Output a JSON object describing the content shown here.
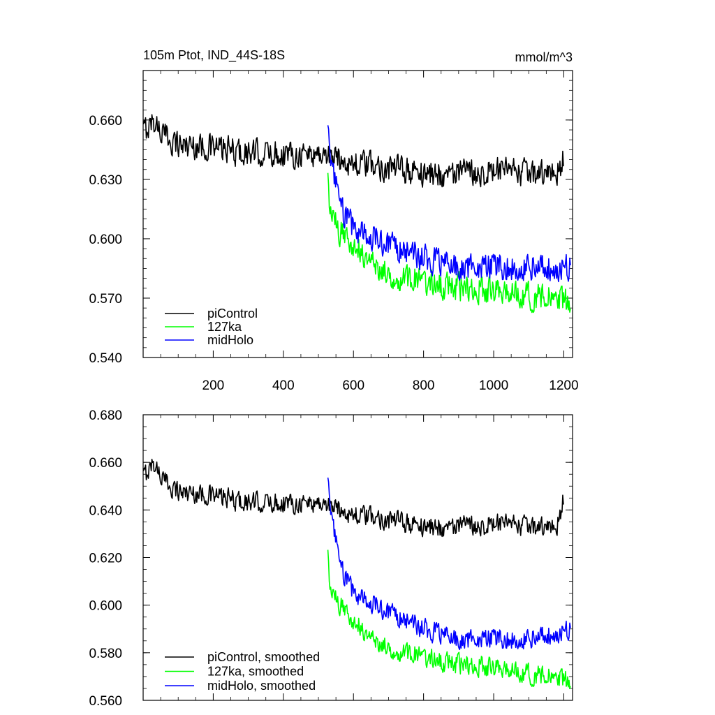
{
  "chart_data": [
    {
      "type": "line",
      "title": "105m Ptot, IND_44S-18S",
      "units": "mmol/m^3",
      "xlim": [
        0,
        1225
      ],
      "ylim": [
        0.54,
        0.685
      ],
      "x_ticks": [
        200,
        400,
        600,
        800,
        1000,
        1200
      ],
      "x_tick_labels": [
        "200",
        "400",
        "600",
        "800",
        "1000",
        "1200"
      ],
      "y_ticks": [
        0.54,
        0.57,
        0.6,
        0.63,
        0.66
      ],
      "y_tick_labels": [
        "0.540",
        "0.570",
        "0.600",
        "0.630",
        "0.660"
      ],
      "legend_position": "bottom-left",
      "series": [
        {
          "name": "piControl",
          "color": "#000000",
          "x_start": 1,
          "x_end": 1200,
          "noise": 0.0065,
          "anchors": [
            [
              1,
              0.654
            ],
            [
              30,
              0.66
            ],
            [
              60,
              0.652
            ],
            [
              100,
              0.648
            ],
            [
              200,
              0.646
            ],
            [
              300,
              0.643
            ],
            [
              400,
              0.643
            ],
            [
              500,
              0.643
            ],
            [
              530,
              0.642
            ],
            [
              600,
              0.638
            ],
            [
              700,
              0.636
            ],
            [
              800,
              0.633
            ],
            [
              900,
              0.633
            ],
            [
              1000,
              0.634
            ],
            [
              1100,
              0.633
            ],
            [
              1180,
              0.632
            ],
            [
              1200,
              0.642
            ]
          ]
        },
        {
          "name": "127ka",
          "color": "#00ff00",
          "x_start": 527,
          "x_end": 1220,
          "noise": 0.0065,
          "anchors": [
            [
              527,
              0.628
            ],
            [
              535,
              0.612
            ],
            [
              560,
              0.603
            ],
            [
              600,
              0.598
            ],
            [
              650,
              0.588
            ],
            [
              700,
              0.582
            ],
            [
              800,
              0.578
            ],
            [
              900,
              0.575
            ],
            [
              1000,
              0.574
            ],
            [
              1100,
              0.571
            ],
            [
              1220,
              0.568
            ]
          ]
        },
        {
          "name": "midHolo",
          "color": "#0000ff",
          "x_start": 527,
          "x_end": 1220,
          "noise": 0.0065,
          "anchors": [
            [
              527,
              0.658
            ],
            [
              535,
              0.64
            ],
            [
              560,
              0.617
            ],
            [
              600,
              0.605
            ],
            [
              650,
              0.601
            ],
            [
              700,
              0.597
            ],
            [
              800,
              0.59
            ],
            [
              900,
              0.585
            ],
            [
              1000,
              0.586
            ],
            [
              1100,
              0.586
            ],
            [
              1220,
              0.586
            ]
          ]
        }
      ]
    },
    {
      "type": "line",
      "xlim": [
        0,
        1225
      ],
      "ylim": [
        0.56,
        0.68
      ],
      "x_ticks": [
        200,
        400,
        600,
        800,
        1000,
        1200
      ],
      "x_tick_labels": [],
      "y_ticks": [
        0.56,
        0.58,
        0.6,
        0.62,
        0.64,
        0.66,
        0.68
      ],
      "y_tick_labels": [
        "0.560",
        "0.580",
        "0.600",
        "0.620",
        "0.640",
        "0.660",
        "0.680"
      ],
      "legend_position": "bottom-left",
      "series": [
        {
          "name": "piControl, smoothed",
          "color": "#000000",
          "x_start": 1,
          "x_end": 1200,
          "noise": 0.004,
          "anchors": [
            [
              1,
              0.654
            ],
            [
              30,
              0.66
            ],
            [
              60,
              0.652
            ],
            [
              100,
              0.648
            ],
            [
              200,
              0.646
            ],
            [
              300,
              0.643
            ],
            [
              400,
              0.643
            ],
            [
              500,
              0.643
            ],
            [
              530,
              0.642
            ],
            [
              600,
              0.638
            ],
            [
              700,
              0.636
            ],
            [
              800,
              0.633
            ],
            [
              900,
              0.633
            ],
            [
              1000,
              0.634
            ],
            [
              1100,
              0.633
            ],
            [
              1180,
              0.632
            ],
            [
              1200,
              0.646
            ]
          ]
        },
        {
          "name": "127ka, smoothed",
          "color": "#00ff00",
          "x_start": 527,
          "x_end": 1220,
          "noise": 0.004,
          "anchors": [
            [
              527,
              0.62
            ],
            [
              535,
              0.605
            ],
            [
              560,
              0.6
            ],
            [
              600,
              0.594
            ],
            [
              650,
              0.586
            ],
            [
              700,
              0.582
            ],
            [
              800,
              0.578
            ],
            [
              900,
              0.575
            ],
            [
              1000,
              0.574
            ],
            [
              1100,
              0.571
            ],
            [
              1220,
              0.568
            ]
          ]
        },
        {
          "name": "midHolo, smoothed",
          "color": "#0000ff",
          "x_start": 527,
          "x_end": 1220,
          "noise": 0.004,
          "anchors": [
            [
              527,
              0.654
            ],
            [
              535,
              0.64
            ],
            [
              560,
              0.617
            ],
            [
              600,
              0.605
            ],
            [
              650,
              0.601
            ],
            [
              700,
              0.597
            ],
            [
              800,
              0.59
            ],
            [
              900,
              0.585
            ],
            [
              1000,
              0.586
            ],
            [
              1100,
              0.586
            ],
            [
              1220,
              0.59
            ]
          ]
        }
      ]
    }
  ]
}
